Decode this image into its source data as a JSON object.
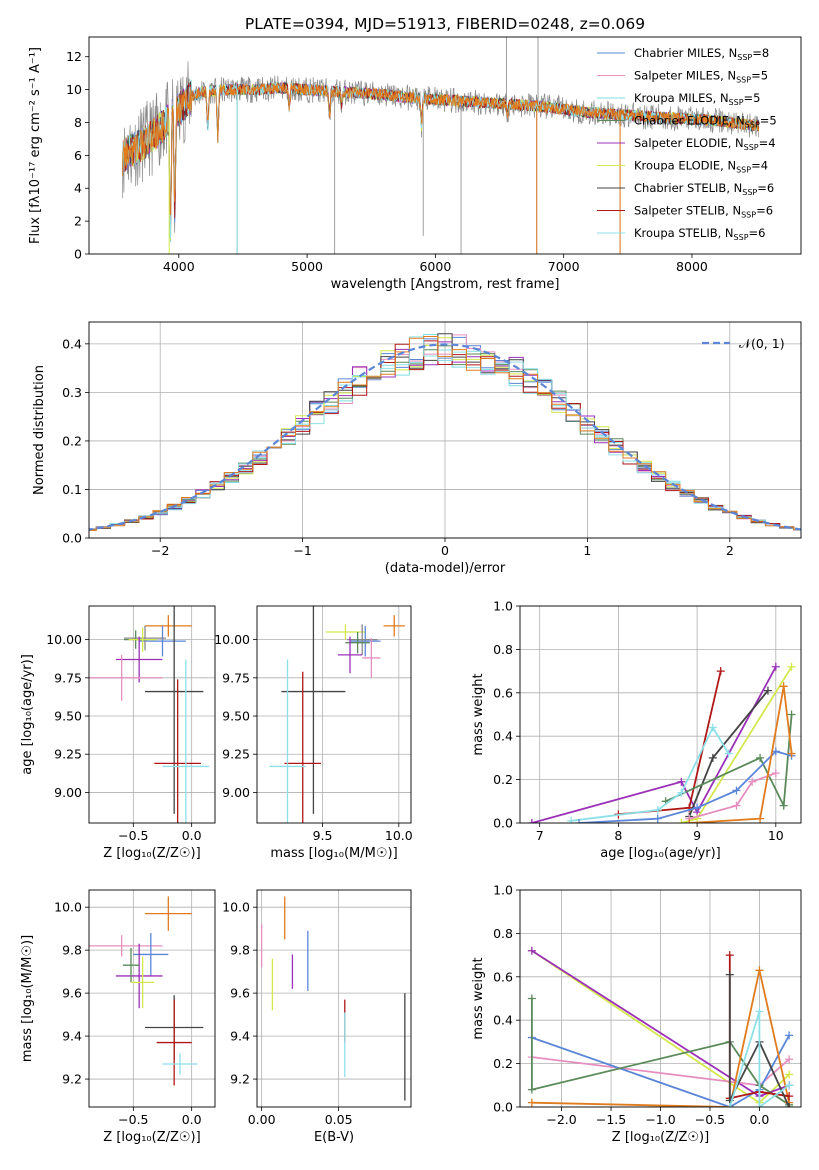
{
  "figure": {
    "title": "PLATE=0394, MJD=51913, FIBERID=0248, z=0.069"
  },
  "colors": {
    "chabrier_miles": "#5b86d8",
    "salpeter_miles": "#e58fc1",
    "kroupa_miles": "#7fdde0",
    "chabrier_elodie": "#5a8a5a",
    "salpeter_elodie": "#9b30b8",
    "kroupa_elodie": "#d4e84e",
    "chabrier_stelib": "#444444",
    "salpeter_stelib": "#b01818",
    "kroupa_stelib": "#8ee0e8",
    "orange": "#e07b1e",
    "data": "#888888",
    "normal": "#5b86d8",
    "grid": "#b0b0b0"
  },
  "chart_data": [
    {
      "id": "spectrum",
      "type": "line",
      "title": "PLATE=0394, MJD=51913, FIBERID=0248, z=0.069",
      "xlabel": "wavelength [Angstrom, rest frame]",
      "ylabel": "Flux [fλ10⁻¹⁷ erg cm⁻² s⁻¹ A⁻¹]",
      "xlim": [
        3300,
        8850
      ],
      "ylim": [
        0,
        13.2
      ],
      "xticks": [
        4000,
        5000,
        6000,
        7000,
        8000
      ],
      "yticks": [
        0,
        2,
        4,
        6,
        8,
        10,
        12
      ],
      "grid": false,
      "legend_position": "top-right",
      "legend": [
        {
          "label": "Chabrier MILES, N",
          "sub": "SSP",
          "tail": "=8",
          "color": "#5b86d8"
        },
        {
          "label": "Salpeter MILES, N",
          "sub": "SSP",
          "tail": "=5",
          "color": "#e58fc1"
        },
        {
          "label": "Kroupa MILES, N",
          "sub": "SSP",
          "tail": "=5",
          "color": "#7fdde0"
        },
        {
          "label": "Chabrier ELODIE, N",
          "sub": "SSP",
          "tail": "=5",
          "color": "#5a8a5a"
        },
        {
          "label": "Salpeter ELODIE, N",
          "sub": "SSP",
          "tail": "=4",
          "color": "#9b30b8"
        },
        {
          "label": "Kroupa ELODIE, N",
          "sub": "SSP",
          "tail": "=4",
          "color": "#d4e84e"
        },
        {
          "label": "Chabrier STELIB, N",
          "sub": "SSP",
          "tail": "=6",
          "color": "#444444"
        },
        {
          "label": "Salpeter STELIB, N",
          "sub": "SSP",
          "tail": "=6",
          "color": "#b01818"
        },
        {
          "label": "Kroupa STELIB, N",
          "sub": "SSP",
          "tail": "=6",
          "color": "#8ee0e8"
        }
      ],
      "continuum": [
        [
          3560,
          5.8
        ],
        [
          3600,
          6.2
        ],
        [
          3700,
          6.6
        ],
        [
          3800,
          7.2
        ],
        [
          3900,
          8.0
        ],
        [
          4000,
          8.8
        ],
        [
          4100,
          9.6
        ],
        [
          4200,
          9.9
        ],
        [
          4400,
          10.0
        ],
        [
          4600,
          10.0
        ],
        [
          4800,
          10.1
        ],
        [
          5000,
          10.0
        ],
        [
          5200,
          9.9
        ],
        [
          5400,
          9.8
        ],
        [
          5600,
          9.7
        ],
        [
          5800,
          9.5
        ],
        [
          6000,
          9.4
        ],
        [
          6200,
          9.3
        ],
        [
          6400,
          9.2
        ],
        [
          6600,
          9.1
        ],
        [
          6800,
          9.0
        ],
        [
          7000,
          8.8
        ],
        [
          7200,
          8.6
        ],
        [
          7400,
          8.5
        ],
        [
          7600,
          8.4
        ],
        [
          7800,
          8.3
        ],
        [
          8000,
          8.2
        ],
        [
          8200,
          8.1
        ],
        [
          8400,
          7.9
        ],
        [
          8520,
          7.8
        ]
      ],
      "absorption_lines": [
        [
          3934,
          0.5
        ],
        [
          3969,
          2.5
        ],
        [
          4226,
          7.5
        ],
        [
          4304,
          7.0
        ],
        [
          4861,
          8.8
        ],
        [
          5175,
          8.2
        ],
        [
          5270,
          9.0
        ],
        [
          5892,
          7.8
        ],
        [
          6563,
          8.6
        ]
      ],
      "spikes": [
        [
          4455,
          0
        ],
        [
          5215,
          0
        ],
        [
          5905,
          1.1
        ],
        [
          6200,
          0
        ],
        [
          6555,
          13.2
        ],
        [
          6790,
          0
        ],
        [
          6800,
          13.2
        ],
        [
          7440,
          0
        ]
      ]
    },
    {
      "id": "residuals",
      "type": "line",
      "xlabel": "(data-model)/error",
      "ylabel": "Normed distribution",
      "xlim": [
        -2.5,
        2.5
      ],
      "ylim": [
        0,
        0.445
      ],
      "xticks": [
        -2,
        -1,
        0,
        1,
        2
      ],
      "yticks": [
        0.0,
        0.1,
        0.2,
        0.3,
        0.4
      ],
      "grid": true,
      "legend_position": "top-right",
      "legend": [
        {
          "label": "𝒩(0, 1)",
          "style": "dashed",
          "color": "#5b86d8"
        }
      ]
    },
    {
      "id": "age_vs_Z",
      "type": "scatter",
      "xlabel": "Z [log₁₀(Z/Z☉)]",
      "ylabel": "age  [log₁₀(age/yr)]",
      "xlim": [
        -0.88,
        0.2
      ],
      "ylim": [
        8.8,
        10.22
      ],
      "xticks": [
        -0.5,
        0.0
      ],
      "yticks": [
        9.0,
        9.25,
        9.5,
        9.75,
        10.0
      ],
      "grid": true,
      "points": [
        {
          "color": "#e07b1e",
          "x": -0.2,
          "xerr": 0.2,
          "y": 10.09,
          "yerr": 0.07
        },
        {
          "color": "#5b86d8",
          "x": -0.25,
          "xerr": 0.2,
          "y": 9.99,
          "yerr": 0.1
        },
        {
          "color": "#888888",
          "x": -0.4,
          "xerr": 0.18,
          "y": 10.01,
          "yerr": 0.08
        },
        {
          "color": "#5a8a5a",
          "x": -0.48,
          "xerr": 0.1,
          "y": 10.0,
          "yerr": 0.06
        },
        {
          "color": "#d4e84e",
          "x": -0.42,
          "xerr": 0.12,
          "y": 10.0,
          "yerr": 0.08
        },
        {
          "color": "#9b30b8",
          "x": -0.45,
          "xerr": 0.2,
          "y": 9.87,
          "yerr": 0.15
        },
        {
          "color": "#e58fc1",
          "x": -0.6,
          "xerr": 0.35,
          "y": 9.75,
          "yerr": 0.15
        },
        {
          "color": "#444444",
          "x": -0.15,
          "xerr": 0.25,
          "y": 9.66,
          "yerr": 0.8
        },
        {
          "color": "#b01818",
          "x": -0.12,
          "xerr": 0.2,
          "y": 9.19,
          "yerr": 0.55
        },
        {
          "color": "#8ee0e8",
          "x": -0.05,
          "xerr": 0.2,
          "y": 9.17,
          "yerr": 0.7
        }
      ]
    },
    {
      "id": "age_vs_mass",
      "type": "scatter",
      "xlabel": "mass [log₁₀(M/M☉)]",
      "ylabel": "",
      "xlim": [
        9.07,
        10.08
      ],
      "ylim": [
        8.8,
        10.22
      ],
      "xticks": [
        9.5,
        10.0
      ],
      "yticks": [
        9.0,
        9.25,
        9.5,
        9.75,
        10.0
      ],
      "grid": true,
      "points": [
        {
          "color": "#e07b1e",
          "x": 9.97,
          "xerr": 0.07,
          "y": 10.09,
          "yerr": 0.07
        },
        {
          "color": "#d4e84e",
          "x": 9.65,
          "xerr": 0.13,
          "y": 10.05,
          "yerr": 0.05
        },
        {
          "color": "#5b86d8",
          "x": 9.78,
          "xerr": 0.1,
          "y": 9.99,
          "yerr": 0.1
        },
        {
          "color": "#888888",
          "x": 9.76,
          "xerr": 0.1,
          "y": 10.0,
          "yerr": 0.1
        },
        {
          "color": "#5a8a5a",
          "x": 9.73,
          "xerr": 0.08,
          "y": 9.98,
          "yerr": 0.07
        },
        {
          "color": "#9b30b8",
          "x": 9.68,
          "xerr": 0.08,
          "y": 9.9,
          "yerr": 0.12
        },
        {
          "color": "#e58fc1",
          "x": 9.82,
          "xerr": 0.06,
          "y": 9.88,
          "yerr": 0.13
        },
        {
          "color": "#444444",
          "x": 9.44,
          "xerr": 0.21,
          "y": 9.66,
          "yerr": 0.8
        },
        {
          "color": "#b01818",
          "x": 9.37,
          "xerr": 0.12,
          "y": 9.19,
          "yerr": 0.6
        },
        {
          "color": "#8ee0e8",
          "x": 9.27,
          "xerr": 0.12,
          "y": 9.17,
          "yerr": 0.7
        }
      ]
    },
    {
      "id": "weight_vs_age",
      "type": "line",
      "xlabel": "age  [log₁₀(age/yr)]",
      "ylabel": "mass weight",
      "xlim": [
        6.75,
        10.32
      ],
      "ylim": [
        0.0,
        1.0
      ],
      "xticks": [
        7,
        8,
        9,
        10
      ],
      "yticks": [
        0.0,
        0.2,
        0.4,
        0.6,
        0.8,
        1.0
      ],
      "grid": true,
      "series": [
        {
          "color": "#9b30b8",
          "x": [
            6.9,
            8.8,
            9.0,
            10.0
          ],
          "y": [
            0.0,
            0.19,
            0.05,
            0.72
          ]
        },
        {
          "color": "#d4e84e",
          "x": [
            8.8,
            9.0,
            10.2
          ],
          "y": [
            0.0,
            0.02,
            0.72
          ]
        },
        {
          "color": "#b01818",
          "x": [
            8.0,
            8.9,
            9.3
          ],
          "y": [
            0.04,
            0.07,
            0.7
          ]
        },
        {
          "color": "#444444",
          "x": [
            8.9,
            9.2,
            9.9
          ],
          "y": [
            0.03,
            0.3,
            0.61
          ]
        },
        {
          "color": "#5a8a5a",
          "x": [
            8.6,
            9.8,
            10.1,
            10.2
          ],
          "y": [
            0.1,
            0.3,
            0.08,
            0.5
          ]
        },
        {
          "color": "#8ee0e8",
          "x": [
            7.4,
            8.5,
            8.8,
            9.2,
            9.4
          ],
          "y": [
            0.01,
            0.06,
            0.14,
            0.44,
            0.32
          ]
        },
        {
          "color": "#5b86d8",
          "x": [
            7.5,
            8.5,
            9.0,
            9.5,
            10.0,
            10.2
          ],
          "y": [
            0.0,
            0.02,
            0.07,
            0.15,
            0.33,
            0.31
          ]
        },
        {
          "color": "#e58fc1",
          "x": [
            8.9,
            9.5,
            9.7,
            10.0
          ],
          "y": [
            0.02,
            0.08,
            0.19,
            0.23
          ]
        },
        {
          "color": "#e07b1e",
          "x": [
            8.9,
            9.8,
            10.1,
            10.2
          ],
          "y": [
            0.0,
            0.02,
            0.63,
            0.32
          ]
        }
      ]
    },
    {
      "id": "mass_vs_Z",
      "type": "scatter",
      "xlabel": "Z [log₁₀(Z/Z☉)]",
      "ylabel": "mass [log₁₀(M/M☉)]",
      "xlim": [
        -0.88,
        0.2
      ],
      "ylim": [
        9.07,
        10.08
      ],
      "xticks": [
        -0.5,
        0.0
      ],
      "yticks": [
        9.2,
        9.4,
        9.6,
        9.8,
        10.0
      ],
      "grid": true,
      "points": [
        {
          "color": "#e07b1e",
          "x": -0.2,
          "xerr": 0.2,
          "y": 9.97,
          "yerr": 0.08
        },
        {
          "color": "#e58fc1",
          "x": -0.6,
          "xerr": 0.35,
          "y": 9.82,
          "yerr": 0.05
        },
        {
          "color": "#5b86d8",
          "x": -0.35,
          "xerr": 0.15,
          "y": 9.78,
          "yerr": 0.1
        },
        {
          "color": "#9b30b8",
          "x": -0.45,
          "xerr": 0.2,
          "y": 9.68,
          "yerr": 0.15
        },
        {
          "color": "#5a8a5a",
          "x": -0.52,
          "xerr": 0.07,
          "y": 9.73,
          "yerr": 0.08
        },
        {
          "color": "#d4e84e",
          "x": -0.42,
          "xerr": 0.1,
          "y": 9.65,
          "yerr": 0.12
        },
        {
          "color": "#444444",
          "x": -0.15,
          "xerr": 0.25,
          "y": 9.44,
          "yerr": 0.15
        },
        {
          "color": "#b01818",
          "x": -0.15,
          "xerr": 0.15,
          "y": 9.37,
          "yerr": 0.2
        },
        {
          "color": "#8ee0e8",
          "x": -0.1,
          "xerr": 0.15,
          "y": 9.27,
          "yerr": 0.05
        }
      ]
    },
    {
      "id": "mass_vs_ebv",
      "type": "scatter",
      "xlabel": "E(B-V)",
      "ylabel": "",
      "xlim": [
        -0.003,
        0.097
      ],
      "ylim": [
        9.07,
        10.08
      ],
      "xticks": [
        0.0,
        0.05
      ],
      "yticks": [
        9.2,
        9.4,
        9.6,
        9.8,
        10.0
      ],
      "grid": true,
      "points": [
        {
          "color": "#e58fc1",
          "x": 0.0,
          "xerr": 0,
          "y": 9.82,
          "yerr": 0.1
        },
        {
          "color": "#d4e84e",
          "x": 0.007,
          "xerr": 0,
          "y": 9.64,
          "yerr": 0.12
        },
        {
          "color": "#e07b1e",
          "x": 0.015,
          "xerr": 0,
          "y": 9.95,
          "yerr": 0.1
        },
        {
          "color": "#9b30b8",
          "x": 0.02,
          "xerr": 0,
          "y": 9.7,
          "yerr": 0.08
        },
        {
          "color": "#5b86d8",
          "x": 0.03,
          "xerr": 0,
          "y": 9.75,
          "yerr": 0.14
        },
        {
          "color": "#b01818",
          "x": 0.054,
          "xerr": 0,
          "y": 9.47,
          "yerr": 0.1
        },
        {
          "color": "#8ee0e8",
          "x": 0.054,
          "xerr": 0,
          "y": 9.36,
          "yerr": 0.15
        },
        {
          "color": "#444444",
          "x": 0.093,
          "xerr": 0,
          "y": 9.35,
          "yerr": 0.25
        }
      ]
    },
    {
      "id": "weight_vs_Z",
      "type": "line",
      "xlabel": "Z [log₁₀(Z/Z☉)]",
      "ylabel": "mass weight",
      "xlim": [
        -2.42,
        0.42
      ],
      "ylim": [
        0.0,
        1.0
      ],
      "xticks": [
        -2.0,
        -1.5,
        -1.0,
        -0.5,
        0.0
      ],
      "yticks": [
        0.0,
        0.2,
        0.4,
        0.6,
        0.8,
        1.0
      ],
      "grid": true,
      "series": [
        {
          "color": "#d4e84e",
          "x": [
            -2.3,
            0.0,
            0.3
          ],
          "y": [
            0.72,
            0.02,
            0.15
          ]
        },
        {
          "color": "#9b30b8",
          "x": [
            -2.3,
            0.0,
            0.3
          ],
          "y": [
            0.72,
            0.05,
            0.1
          ]
        },
        {
          "color": "#e58fc1",
          "x": [
            -2.3,
            0.0,
            0.3
          ],
          "y": [
            0.23,
            0.1,
            0.22
          ]
        },
        {
          "color": "#5b86d8",
          "x": [
            -2.3,
            -0.3,
            0.0,
            0.3
          ],
          "y": [
            0.32,
            0.0,
            0.08,
            0.33
          ]
        },
        {
          "color": "#5a8a5a",
          "x": [
            -2.3,
            -2.3,
            -0.3,
            0.0,
            0.3
          ],
          "y": [
            0.5,
            0.08,
            0.3,
            0.1,
            0.01
          ]
        },
        {
          "color": "#e07b1e",
          "x": [
            -2.3,
            -0.3,
            0.0,
            0.3
          ],
          "y": [
            0.02,
            0.0,
            0.63,
            0.02
          ]
        },
        {
          "color": "#b01818",
          "x": [
            -0.3,
            -0.3,
            0.0,
            0.3
          ],
          "y": [
            0.7,
            0.04,
            0.07,
            0.05
          ]
        },
        {
          "color": "#444444",
          "x": [
            -0.3,
            -0.3,
            0.0,
            0.3
          ],
          "y": [
            0.61,
            0.03,
            0.3,
            0.0
          ]
        },
        {
          "color": "#8ee0e8",
          "x": [
            -0.3,
            0.0,
            0.0,
            0.3
          ],
          "y": [
            0.0,
            0.44,
            0.0,
            0.1
          ]
        }
      ]
    }
  ]
}
